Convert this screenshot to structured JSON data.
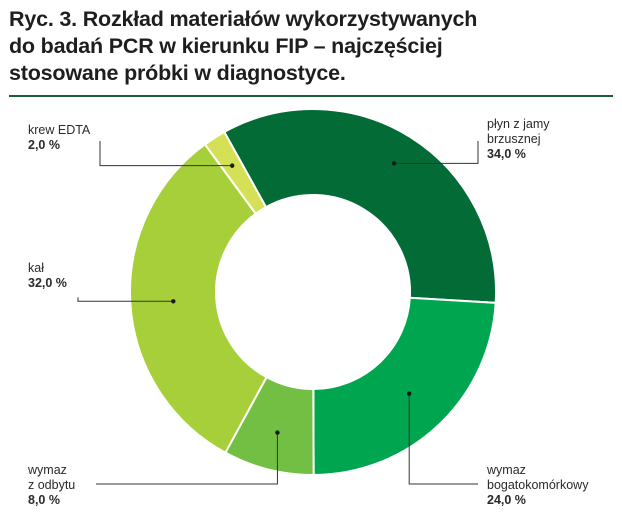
{
  "title_lines": [
    "Ryc. 3. Rozkład materiałów wykorzystywanych",
    "do badań PCR w kierunku FIP – najczęściej",
    "stosowane próbki w diagnostyce."
  ],
  "chart_data": {
    "type": "pie",
    "donut": true,
    "title": "Ryc. 3. Rozkład materiałów wykorzystywanych do badań PCR w kierunku FIP – najczęściej stosowane próbki w diagnostyce.",
    "slices": [
      {
        "label_lines": [
          "płyn z jamy",
          "brzusznej"
        ],
        "value": 34.0,
        "value_text": "34,0 %",
        "color": "#036c36"
      },
      {
        "label_lines": [
          "wymaz",
          "bogatokomórkowy"
        ],
        "value": 24.0,
        "value_text": "24,0 %",
        "color": "#00a54f"
      },
      {
        "label_lines": [
          "wymaz",
          "z odbytu"
        ],
        "value": 8.0,
        "value_text": "8,0 %",
        "color": "#72bf44"
      },
      {
        "label_lines": [
          "kał"
        ],
        "value": 32.0,
        "value_text": "32,0 %",
        "color": "#a6cf3a"
      },
      {
        "label_lines": [
          "krew EDTA"
        ],
        "value": 2.0,
        "value_text": "2,0 %",
        "color": "#d4e157"
      }
    ]
  }
}
